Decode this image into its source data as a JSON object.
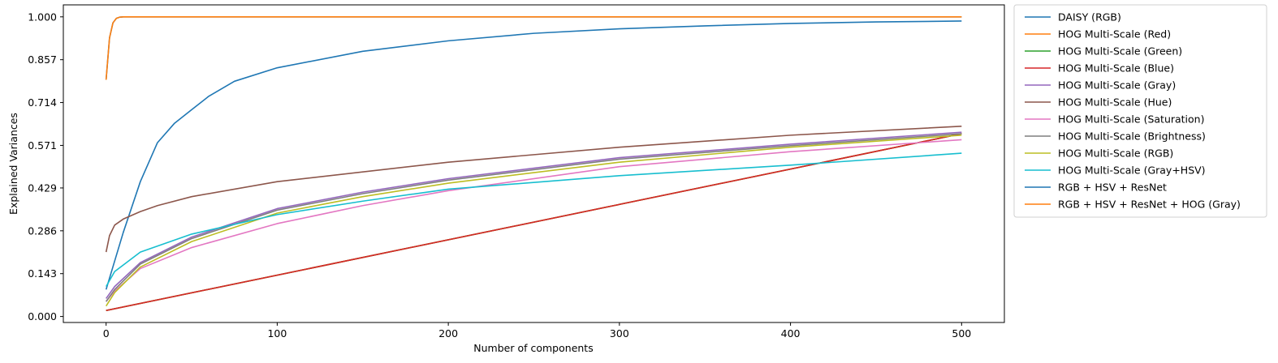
{
  "chart_data": {
    "type": "line",
    "title": "",
    "xlabel": "Number of components",
    "ylabel": "Explained Variances",
    "xlim": [
      -25,
      525
    ],
    "ylim": [
      -0.02,
      1.04
    ],
    "xticks": [
      0,
      100,
      200,
      300,
      400,
      500
    ],
    "xtick_labels": [
      "0",
      "100",
      "200",
      "300",
      "400",
      "500"
    ],
    "yticks": [
      0.0,
      0.143,
      0.286,
      0.429,
      0.571,
      0.714,
      0.857,
      1.0
    ],
    "ytick_labels": [
      "0.000",
      "0.143",
      "0.286",
      "0.429",
      "0.571",
      "0.714",
      "0.857",
      "1.000"
    ],
    "grid": false,
    "legend_placement": "outside-right-top",
    "series": [
      {
        "name": "DAISY (RGB)",
        "color": "#1f77b4",
        "x": [
          0,
          10,
          20,
          30,
          40,
          50,
          60,
          75,
          100,
          150,
          200,
          250,
          300,
          350,
          400,
          450,
          500
        ],
        "y": [
          0.09,
          0.28,
          0.45,
          0.58,
          0.645,
          0.69,
          0.735,
          0.785,
          0.83,
          0.885,
          0.92,
          0.945,
          0.96,
          0.97,
          0.978,
          0.983,
          0.986
        ]
      },
      {
        "name": "HOG Multi-Scale (Red)",
        "color": "#ff7f0e",
        "x": [
          0,
          500
        ],
        "y": [
          0.02,
          0.61
        ]
      },
      {
        "name": "HOG Multi-Scale (Green)",
        "color": "#2ca02c",
        "x": [
          0,
          500
        ],
        "y": [
          0.02,
          0.61
        ]
      },
      {
        "name": "HOG Multi-Scale (Blue)",
        "color": "#d62728",
        "x": [
          0,
          500
        ],
        "y": [
          0.02,
          0.61
        ]
      },
      {
        "name": "HOG Multi-Scale (Gray)",
        "color": "#9467bd",
        "x": [
          0,
          5,
          20,
          50,
          100,
          150,
          200,
          300,
          400,
          500
        ],
        "y": [
          0.06,
          0.1,
          0.18,
          0.265,
          0.36,
          0.415,
          0.46,
          0.53,
          0.575,
          0.615
        ]
      },
      {
        "name": "HOG Multi-Scale (Hue)",
        "color": "#8c564b",
        "x": [
          0,
          2,
          5,
          10,
          20,
          30,
          50,
          100,
          200,
          300,
          400,
          500
        ],
        "y": [
          0.215,
          0.27,
          0.305,
          0.325,
          0.35,
          0.37,
          0.4,
          0.45,
          0.515,
          0.565,
          0.605,
          0.635
        ]
      },
      {
        "name": "HOG Multi-Scale (Saturation)",
        "color": "#e377c2",
        "x": [
          0,
          5,
          20,
          50,
          100,
          150,
          200,
          300,
          400,
          500
        ],
        "y": [
          0.05,
          0.085,
          0.16,
          0.23,
          0.31,
          0.37,
          0.42,
          0.5,
          0.55,
          0.59
        ]
      },
      {
        "name": "HOG Multi-Scale (Brightness)",
        "color": "#7f7f7f",
        "x": [
          0,
          5,
          20,
          50,
          100,
          150,
          200,
          300,
          400,
          500
        ],
        "y": [
          0.05,
          0.09,
          0.175,
          0.26,
          0.355,
          0.41,
          0.455,
          0.525,
          0.57,
          0.61
        ]
      },
      {
        "name": "HOG Multi-Scale (RGB)",
        "color": "#bcbd22",
        "x": [
          0,
          5,
          20,
          50,
          100,
          150,
          200,
          300,
          400,
          500
        ],
        "y": [
          0.035,
          0.08,
          0.165,
          0.25,
          0.345,
          0.4,
          0.445,
          0.515,
          0.565,
          0.605
        ]
      },
      {
        "name": "HOG Multi-Scale (Gray+HSV)",
        "color": "#17becf",
        "x": [
          0,
          5,
          20,
          50,
          100,
          150,
          200,
          300,
          400,
          500
        ],
        "y": [
          0.1,
          0.15,
          0.215,
          0.275,
          0.34,
          0.385,
          0.425,
          0.47,
          0.505,
          0.545
        ]
      },
      {
        "name": "RGB + HSV + ResNet",
        "color": "#1f77b4",
        "x": [
          0,
          2,
          4,
          6,
          8,
          10,
          20,
          500
        ],
        "y": [
          0.79,
          0.93,
          0.98,
          0.995,
          0.999,
          1.0,
          1.0,
          1.0
        ]
      },
      {
        "name": "RGB + HSV + ResNet + HOG (Gray)",
        "color": "#ff7f0e",
        "x": [
          0,
          2,
          4,
          6,
          8,
          10,
          20,
          500
        ],
        "y": [
          0.79,
          0.93,
          0.98,
          0.995,
          0.999,
          1.0,
          1.0,
          1.0
        ]
      }
    ]
  }
}
